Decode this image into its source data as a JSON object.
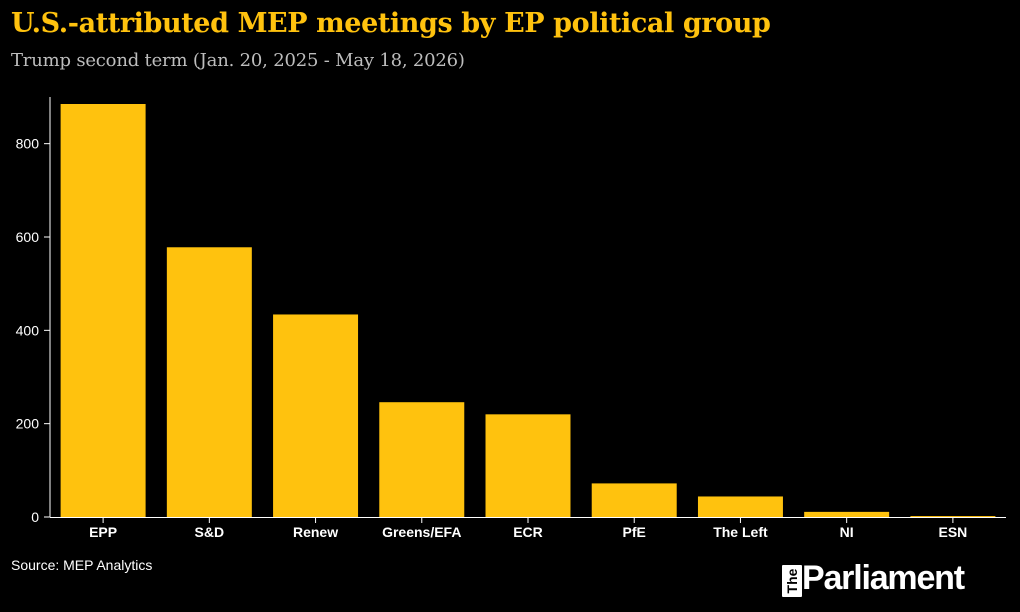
{
  "colors": {
    "background": "#000000",
    "title": "#ffc20e",
    "subtitle": "#bdbdbd",
    "bar": "#ffc20e",
    "axis": "#ffffff",
    "text": "#ffffff"
  },
  "chart_data": {
    "type": "bar",
    "title": "U.S.-attributed MEP meetings by EP political group",
    "subtitle": "Trump second term (Jan. 20, 2025 - May 18, 2026)",
    "xlabel": "",
    "ylabel": "",
    "categories": [
      "EPP",
      "S&D",
      "Renew",
      "Greens/EFA",
      "ECR",
      "PfE",
      "The Left",
      "NI",
      "ESN"
    ],
    "values": [
      885,
      578,
      434,
      246,
      220,
      72,
      44,
      11,
      2
    ],
    "ylim": [
      0,
      900
    ],
    "yticks": [
      0,
      200,
      400,
      600,
      800
    ],
    "grid": false,
    "legend": "none"
  },
  "footer": {
    "source": "Source: MEP Analytics",
    "logo_prefix": "The",
    "logo_word": "Parliament"
  }
}
